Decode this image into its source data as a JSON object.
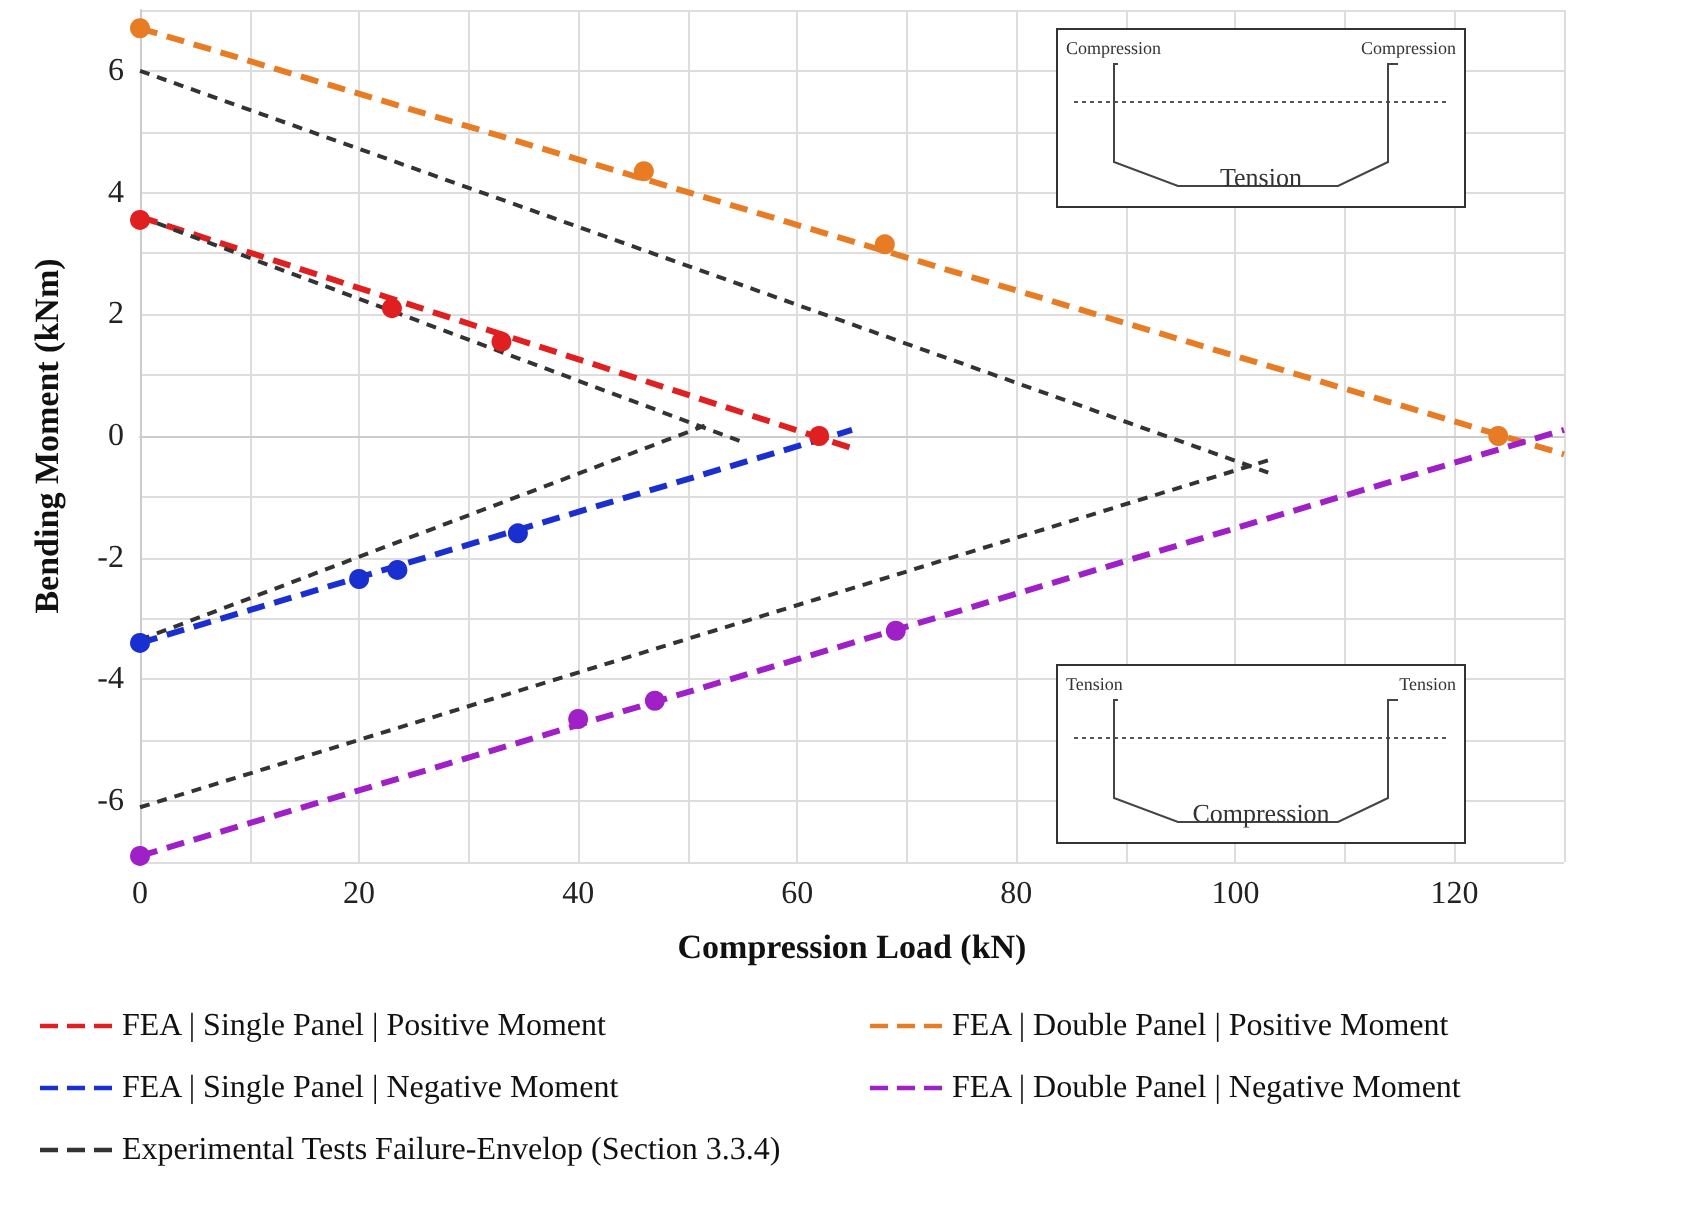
{
  "chart_data": {
    "type": "line",
    "xlabel": "Compression Load (kN)",
    "ylabel": "Bending Moment (kNm)",
    "xlim": [
      0,
      130
    ],
    "ylim": [
      -7,
      7
    ],
    "xticks": [
      0,
      {
        "value": 10,
        "label": null
      },
      20,
      {
        "value": 30,
        "label": null
      },
      40,
      {
        "value": 50,
        "label": null
      },
      60,
      {
        "value": 70,
        "label": null
      },
      80,
      {
        "value": 90,
        "label": null
      },
      100,
      {
        "value": 110,
        "label": null
      },
      120,
      {
        "value": 130,
        "label": null
      }
    ],
    "yticks": [
      {
        "value": -7,
        "label": null
      },
      -6,
      {
        "value": -5,
        "label": null
      },
      -4,
      {
        "value": -3,
        "label": null
      },
      -2,
      {
        "value": -1,
        "label": null
      },
      0,
      {
        "value": 1,
        "label": null
      },
      2,
      {
        "value": 3,
        "label": null
      },
      4,
      {
        "value": 5,
        "label": null
      },
      6,
      {
        "value": 7,
        "label": null
      }
    ],
    "grid": true,
    "legend": "bottom",
    "line_style": "dashed",
    "marker": "none",
    "series": [
      {
        "name": "FEA | Single Panel | Positive Moment",
        "color": "#e02020",
        "x": [
          0,
          65
        ],
        "values": [
          3.6,
          -0.2
        ]
      },
      {
        "name": "FEA | Double Panel | Positive Moment",
        "color": "#e87c24",
        "x": [
          0,
          130
        ],
        "values": [
          6.7,
          -0.3
        ]
      },
      {
        "name": "FEA | Single Panel | Negative Moment",
        "color": "#1a2fd0",
        "x": [
          0,
          65
        ],
        "values": [
          -3.4,
          0.1
        ]
      },
      {
        "name": "FEA | Double Panel | Negative Moment",
        "color": "#a020c8",
        "x": [
          0,
          130
        ],
        "values": [
          -6.9,
          0.1
        ]
      },
      {
        "name": "Experimental Tests Failure-Envelop (Section 3.3.4)",
        "color": "#333333",
        "x": [
          0,
          55
        ],
        "values": [
          3.6,
          -0.1
        ]
      },
      {
        "color": "#333333",
        "x": [
          0,
          52
        ],
        "values": [
          -3.35,
          0.2
        ]
      },
      {
        "color": "#333333",
        "x": [
          0,
          103
        ],
        "values": [
          6,
          -0.6
        ]
      },
      {
        "color": "#333333",
        "x": [
          0,
          103
        ],
        "values": [
          -6.1,
          -0.4
        ]
      },
      {
        "type": "scatter",
        "marker": "circle",
        "color": "#e02020",
        "x": [
          0,
          23,
          33,
          62
        ],
        "values": [
          3.55,
          2.1,
          1.55,
          0
        ]
      },
      {
        "type": "scatter",
        "marker": "circle",
        "color": "#e87c24",
        "x": [
          0,
          46,
          68,
          124
        ],
        "values": [
          6.7,
          4.35,
          3.15,
          0
        ]
      },
      {
        "type": "scatter",
        "marker": "circle",
        "color": "#1a2fd0",
        "x": [
          0,
          20,
          23.5,
          34.5
        ],
        "values": [
          -3.4,
          -2.35,
          -2.2,
          -1.6
        ]
      },
      {
        "type": "scatter",
        "marker": "circle",
        "color": "#a020c8",
        "x": [
          0,
          40,
          47,
          69
        ],
        "values": [
          -6.9,
          -4.65,
          -4.35,
          -3.2
        ]
      }
    ],
    "annotations": [
      "Compression",
      "Compression",
      "Tension",
      "Tension",
      "Tension",
      "Compression"
    ]
  }
}
